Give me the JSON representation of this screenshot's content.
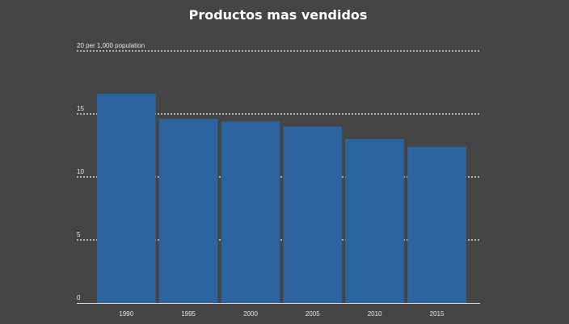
{
  "chart_data": {
    "type": "bar",
    "title": "Productos mas vendidos",
    "xlabel": "",
    "ylabel": "",
    "categories": [
      "1990",
      "1995",
      "2000",
      "2005",
      "2010",
      "2015"
    ],
    "values": [
      16.6,
      14.6,
      14.4,
      14.0,
      13.0,
      12.4
    ],
    "ylim": [
      0,
      20
    ],
    "yticks": [
      0,
      5,
      10,
      15,
      20
    ],
    "ytick_labels": [
      "0",
      "5",
      "10",
      "15",
      "20 per 1,000 population"
    ],
    "grid": true,
    "legend": "none",
    "colors": {
      "bar": "#2b64a0",
      "background": "#454545",
      "grid": "#f2f2f2",
      "text": "#e6e6e6",
      "title": "#ffffff"
    }
  }
}
